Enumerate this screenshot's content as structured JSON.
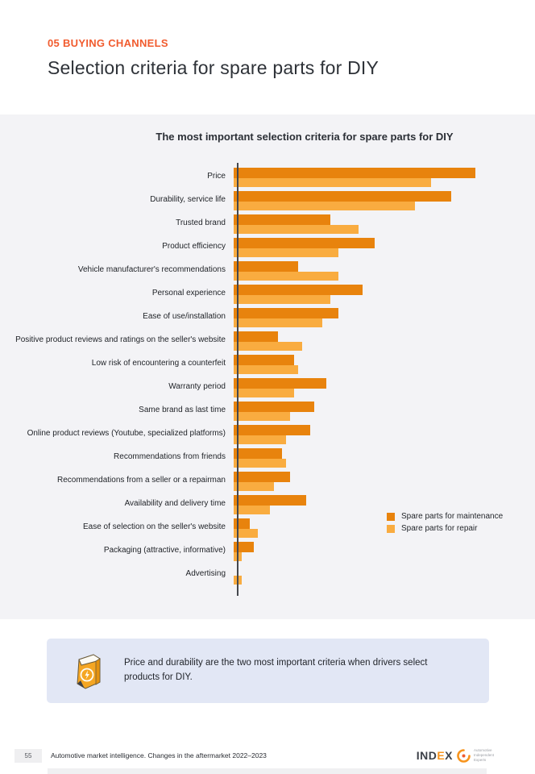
{
  "page": {
    "kicker": "05 BUYING CHANNELS",
    "title": "Selection criteria for spare parts for DIY"
  },
  "chart_data": {
    "type": "bar",
    "orientation": "horizontal",
    "title": "The most important selection criteria for spare parts for DIY",
    "categories": [
      "Price",
      "Durability, service life",
      "Trusted brand",
      "Product efficiency",
      "Vehicle manufacturer's recommendations",
      "Personal experience",
      "Ease of use/installation",
      "Positive product reviews and ratings on the seller's website",
      "Low risk of encountering a counterfeit",
      "Warranty period",
      "Same brand as last time",
      "Online product reviews (Youtube, specialized platforms)",
      "Recommendations from friends",
      "Recommendations from a seller or a repairman",
      "Availability and delivery time",
      "Ease of selection on the seller's website",
      "Packaging (attractive, informative)",
      "Advertising"
    ],
    "series": [
      {
        "name": "Spare parts for maintenance",
        "color": "#E8830D",
        "values": [
          60,
          54,
          24,
          35,
          16,
          32,
          26,
          11,
          15,
          23,
          20,
          19,
          12,
          14,
          18,
          4,
          5,
          0
        ]
      },
      {
        "name": "Spare parts for repair",
        "color": "#F9AC40",
        "values": [
          49,
          45,
          31,
          26,
          26,
          24,
          22,
          17,
          16,
          15,
          14,
          13,
          13,
          10,
          9,
          6,
          2,
          2
        ]
      }
    ],
    "xlim": [
      0,
      65
    ],
    "grid": false,
    "value_labels": false,
    "legend_position": "right-middle"
  },
  "callout": {
    "icon": "lightning-box-icon",
    "text": "Price and durability are the two most important criteria when drivers select products for DIY."
  },
  "footer": {
    "page_number": "55",
    "text": "Automotive market intelligence. Changes in the aftermarket 2022–2023",
    "logo": {
      "part1": "IND",
      "accent": "E",
      "part2": "X"
    },
    "logo_tagline": "Automotive Independent Experts"
  },
  "colors": {
    "accent_kicker": "#F15B2E",
    "maintenance": "#E8830D",
    "repair": "#F9AC40",
    "panel_bg": "#F3F3F6",
    "callout_bg": "#E2E7F5"
  }
}
